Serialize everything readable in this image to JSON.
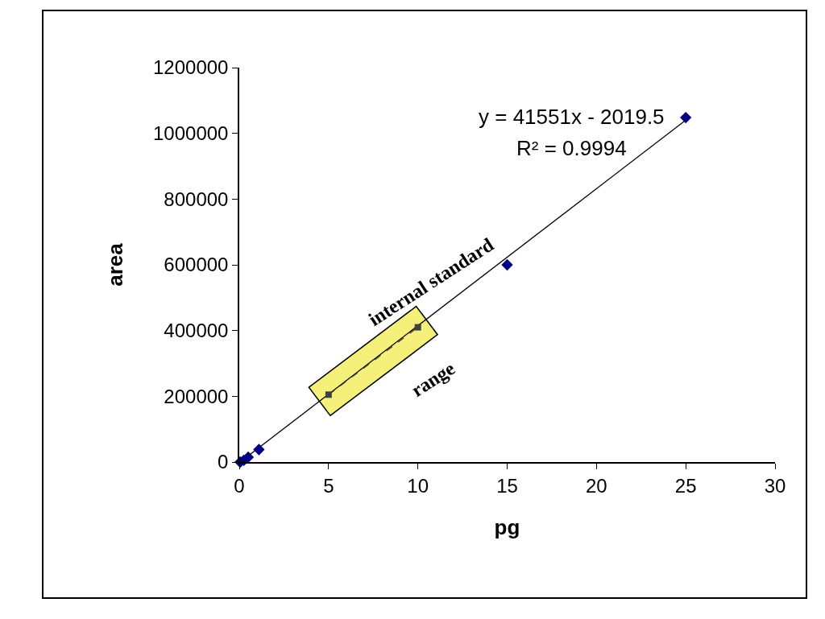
{
  "chart_data": {
    "type": "scatter",
    "xlabel": "pg",
    "ylabel": "area",
    "xlim": [
      0,
      30
    ],
    "ylim": [
      0,
      1200000
    ],
    "xticks": [
      0,
      5,
      10,
      15,
      20,
      25,
      30
    ],
    "yticks": [
      0,
      200000,
      400000,
      600000,
      800000,
      1000000,
      1200000
    ],
    "grid": false,
    "series": [
      {
        "type": "line",
        "color": "#000000",
        "marker": "none",
        "line_style": "solid",
        "x": [
          0.05,
          25
        ],
        "values": [
          0,
          1040000
        ]
      },
      {
        "type": "line",
        "color": "#404040",
        "marker": "square",
        "line_style": "dashed",
        "x": [
          5,
          10
        ],
        "values": [
          205000,
          410000
        ]
      },
      {
        "color": "#000080",
        "marker": "diamond",
        "x": [
          0.05,
          0.25,
          0.5,
          1.1,
          15,
          25
        ],
        "values": [
          0,
          5000,
          15000,
          38000,
          600000,
          1048000
        ]
      }
    ],
    "annotations": [
      "y = 41551x - 2019.5",
      "R² = 0.9994",
      "internal standard",
      "range"
    ]
  }
}
